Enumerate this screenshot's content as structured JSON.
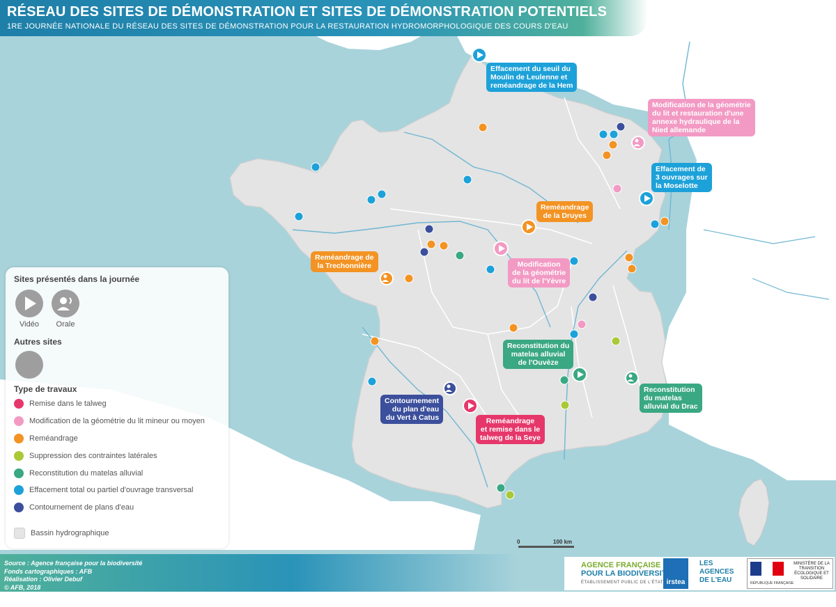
{
  "header": {
    "title": "RÉSEAU DES SITES DE DÉMONSTRATION ET SITES DE DÉMONSTRATION POTENTIELS",
    "subtitle": "1RE JOURNÉE NATIONALE DU RÉSEAU DES SITES DE DÉMONSTRATION POUR LA RESTAURATION HYDROMORPHOLOGIQUE DES COURS D'EAU"
  },
  "legend": {
    "title_presented": "Sites présentés dans la journée",
    "video_label": "Vidéo",
    "oral_label": "Orale",
    "title_other": "Autres sites",
    "title_types": "Type de travaux",
    "types": [
      {
        "label": "Remise dans le talweg",
        "color": "#e6376b"
      },
      {
        "label": "Modification de la géométrie du lit mineur ou moyen",
        "color": "#f29ac4"
      },
      {
        "label": "Reméandrage",
        "color": "#f39323"
      },
      {
        "label": "Suppression des contraintes latérales",
        "color": "#a9c938"
      },
      {
        "label": "Reconstitution du matelas alluvial",
        "color": "#3aa882"
      },
      {
        "label": "Effacement total ou partiel d'ouvrage transversal",
        "color": "#1da1d9"
      },
      {
        "label": "Contournement de plans d'eau",
        "color": "#3b4f9c"
      }
    ],
    "basin_label": "Bassin hydrographique"
  },
  "callouts": [
    {
      "lines": [
        "Effacement du seuil du",
        "Moulin de Leulenne et",
        "reméandrage de la Hem"
      ],
      "color": "#1da1d9"
    },
    {
      "lines": [
        "Modification de la géométrie",
        "du lit et restauration d'une",
        "annexe hydraulique de la",
        "Nied allemande"
      ],
      "color": "#f29ac4"
    },
    {
      "lines": [
        "Effacement de",
        "3 ouvrages sur",
        "la Moselotte"
      ],
      "color": "#1da1d9"
    },
    {
      "lines": [
        "Reméandrage",
        "de la Druyes"
      ],
      "color": "#f39323"
    },
    {
      "lines": [
        "Reméandrage de",
        "la Trechonnière"
      ],
      "color": "#f39323"
    },
    {
      "lines": [
        "Modification",
        "de la géométrie",
        "du lit de l'Yèvre"
      ],
      "color": "#f29ac4"
    },
    {
      "lines": [
        "Reconstitution du",
        "matelas alluvial",
        "de l'Ouvèze"
      ],
      "color": "#3aa882"
    },
    {
      "lines": [
        "Reconstitution",
        "du matelas",
        "alluvial du Drac"
      ],
      "color": "#3aa882"
    },
    {
      "lines": [
        "Contournement",
        "du plan d'eau",
        "du Vert à Catus"
      ],
      "color": "#3b4f9c"
    },
    {
      "lines": [
        "Reméandrage",
        "et remise dans le",
        "talweg de la Seye"
      ],
      "color": "#e6376b"
    }
  ],
  "scale": {
    "zero": "0",
    "distance": "100 km"
  },
  "credits": {
    "source": "Source : Agence française pour la biodiversité",
    "fonds": "Fonds cartographiques : AFB",
    "realisation": "Réalisation : Olivier Debuf",
    "copyright": "© AFB, 2018"
  },
  "logos": {
    "afb_line1": "AGENCE FRANÇAISE",
    "afb_line2": "POUR LA BIODIVERSITÉ",
    "afb_line3": "ÉTABLISSEMENT PUBLIC DE L'ÉTAT",
    "irstea": "irstea",
    "agences_line1": "LES",
    "agences_line2": "AGENCES",
    "agences_line3": "DE L'EAU",
    "rf_small": "RÉPUBLIQUE FRANÇAISE",
    "ministere": "MINISTÈRE DE LA TRANSITION ÉCOLOGIQUE ET SOLIDAIRE"
  },
  "colors": {
    "sea": "#a8d3db",
    "land": "#e4e4e4",
    "neighbor": "#ffffff",
    "river": "#6fb6d2"
  }
}
